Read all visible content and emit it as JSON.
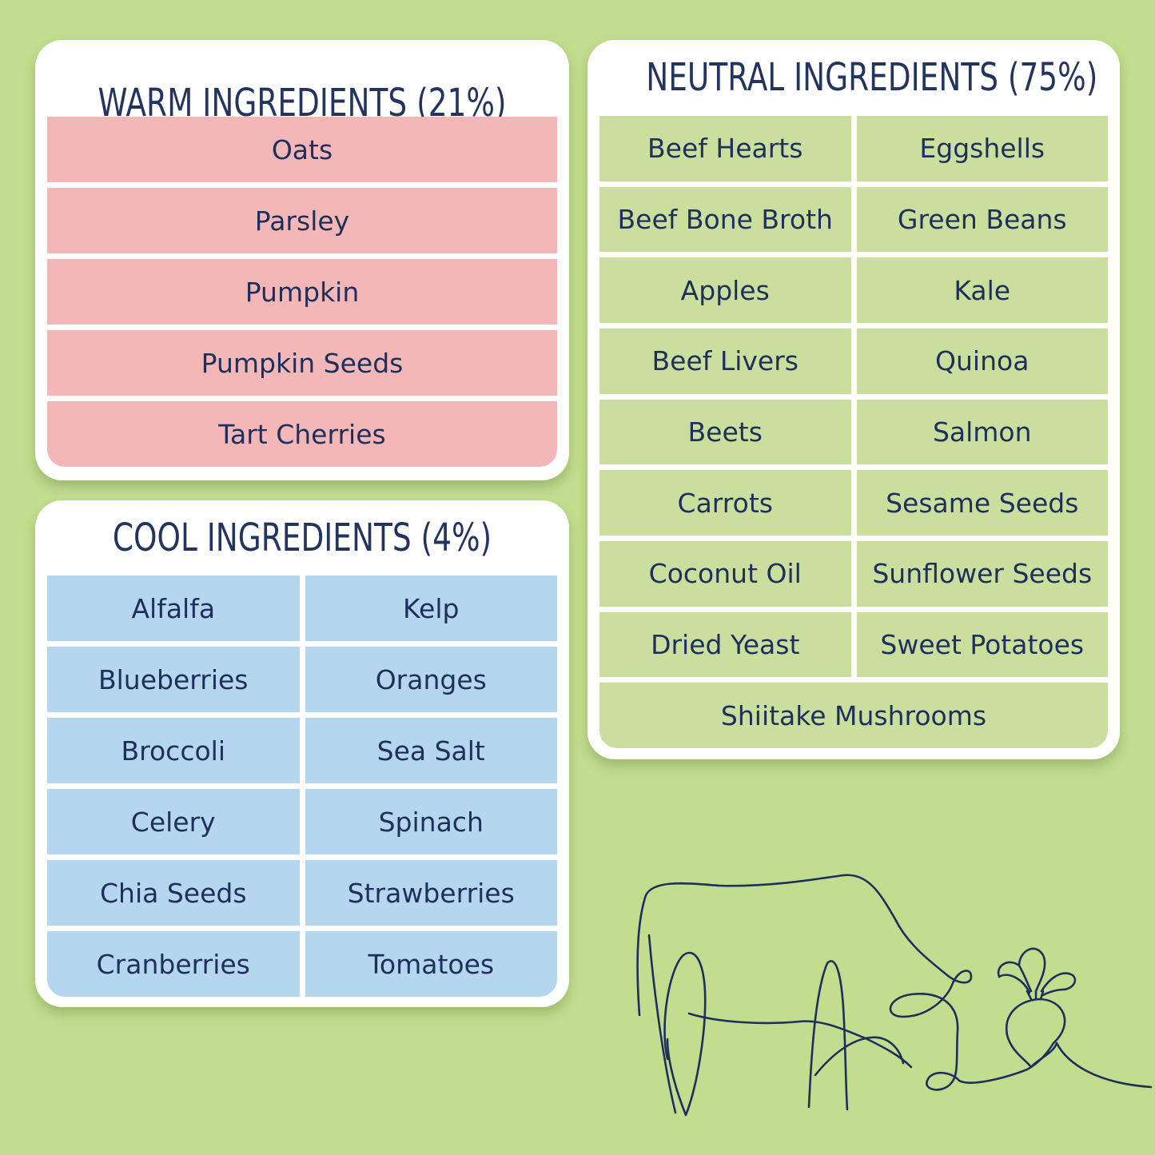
{
  "warm": {
    "title": "WARM INGREDIENTS (21%)",
    "items": [
      "Oats",
      "Parsley",
      "Pumpkin",
      "Pumpkin Seeds",
      "Tart Cherries"
    ]
  },
  "cool": {
    "title": "COOL INGREDIENTS (4%)",
    "items": [
      "Alfalfa",
      "Kelp",
      "Blueberries",
      "Oranges",
      "Broccoli",
      "Sea Salt",
      "Celery",
      "Spinach",
      "Chia Seeds",
      "Strawberries",
      "Cranberries",
      "Tomatoes"
    ]
  },
  "neutral": {
    "title": "NEUTRAL INGREDIENTS (75%)",
    "items": [
      "Beef Hearts",
      "Eggshells",
      "Beef Bone Broth",
      "Green Beans",
      "Apples",
      "Kale",
      "Beef Livers",
      "Quinoa",
      "Beets",
      "Salmon",
      "Carrots",
      "Sesame Seeds",
      "Coconut Oil",
      "Sunflower Seeds",
      "Dried Yeast",
      "Sweet Potatoes",
      "Shiitake Mushrooms"
    ]
  },
  "colors": {
    "background": "#c2dd8d",
    "warm": "#f4b7b7",
    "cool": "#b5d6ef",
    "neutral": "#cadf9d",
    "text": "#1f2f5c"
  },
  "illustration": {
    "icons": [
      "cow-line-icon",
      "beet-line-icon"
    ]
  }
}
